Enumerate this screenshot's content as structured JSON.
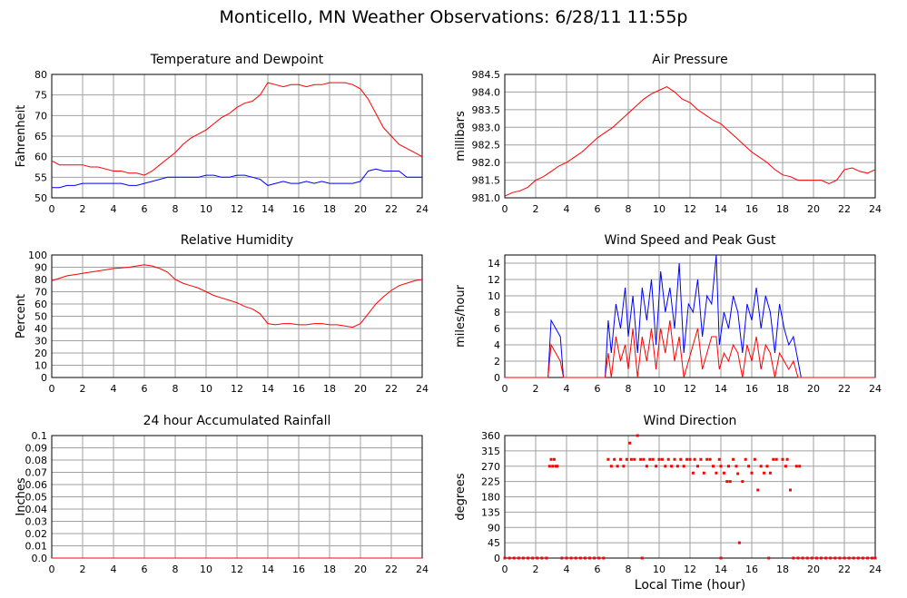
{
  "page_title": "Monticello, MN Weather Observations: 6/28/11 11:55p",
  "colors": {
    "temperature": "#ff0000",
    "dewpoint": "#0000ff",
    "pressure": "#ff0000",
    "humidity": "#ff0000",
    "rainfall": "#ff0000",
    "wind_speed": "#ff0000",
    "peak_gust": "#0000ff",
    "wind_direction": "#ff0000",
    "grid": "#a0a0a0"
  },
  "chart_data": [
    {
      "type": "line",
      "title": "Temperature and Dewpoint",
      "ylabel": "Fahrenheit",
      "xlabel": "",
      "xlim": [
        0,
        24
      ],
      "ylim": [
        50,
        80
      ],
      "xticks": [
        "0",
        "2",
        "4",
        "6",
        "8",
        "10",
        "12",
        "14",
        "16",
        "18",
        "20",
        "22",
        "24"
      ],
      "yticks": [
        "50",
        "55",
        "60",
        "65",
        "70",
        "75",
        "80"
      ],
      "grid": true,
      "series": [
        {
          "color": "#ff0000",
          "x": [
            0,
            0.5,
            1,
            1.5,
            2,
            2.5,
            3,
            3.5,
            4,
            4.5,
            5,
            5.5,
            6,
            6.5,
            7,
            7.5,
            8,
            8.5,
            9,
            9.5,
            10,
            10.5,
            11,
            11.5,
            12,
            12.5,
            13,
            13.5,
            14,
            14.5,
            15,
            15.5,
            16,
            16.5,
            17,
            17.5,
            18,
            18.5,
            19,
            19.5,
            20,
            20.5,
            21,
            21.5,
            22,
            22.5,
            23,
            23.5,
            24
          ],
          "y": [
            59,
            58,
            58,
            58,
            58,
            57.5,
            57.5,
            57,
            56.5,
            56.5,
            56,
            56,
            55.5,
            56.5,
            58,
            59.5,
            61,
            63,
            64.5,
            65.5,
            66.5,
            68,
            69.5,
            70.5,
            72,
            73,
            73.5,
            75,
            78,
            77.5,
            77,
            77.5,
            77.5,
            77,
            77.5,
            77.5,
            78,
            78,
            78,
            77.5,
            76.5,
            74,
            70.5,
            67,
            65,
            63,
            62,
            61,
            60
          ]
        },
        {
          "color": "#0000ff",
          "x": [
            0,
            0.5,
            1,
            1.5,
            2,
            2.5,
            3,
            3.5,
            4,
            4.5,
            5,
            5.5,
            6,
            6.5,
            7,
            7.5,
            8,
            8.5,
            9,
            9.5,
            10,
            10.5,
            11,
            11.5,
            12,
            12.5,
            13,
            13.5,
            14,
            14.5,
            15,
            15.5,
            16,
            16.5,
            17,
            17.5,
            18,
            18.5,
            19,
            19.5,
            20,
            20.5,
            21,
            21.5,
            22,
            22.5,
            23,
            23.5,
            24
          ],
          "y": [
            52.5,
            52.5,
            53,
            53,
            53.5,
            53.5,
            53.5,
            53.5,
            53.5,
            53.5,
            53,
            53,
            53.5,
            54,
            54.5,
            55,
            55,
            55,
            55,
            55,
            55.5,
            55.5,
            55,
            55,
            55.5,
            55.5,
            55,
            54.5,
            53,
            53.5,
            54,
            53.5,
            53.5,
            54,
            53.5,
            54,
            53.5,
            53.5,
            53.5,
            53.5,
            54,
            56.5,
            57,
            56.5,
            56.5,
            56.5,
            55,
            55,
            55
          ]
        }
      ]
    },
    {
      "type": "line",
      "title": "Air Pressure",
      "ylabel": "millibars",
      "xlabel": "",
      "xlim": [
        0,
        24
      ],
      "ylim": [
        981.0,
        984.5
      ],
      "xticks": [
        "0",
        "2",
        "4",
        "6",
        "8",
        "10",
        "12",
        "14",
        "16",
        "18",
        "20",
        "22",
        "24"
      ],
      "yticks": [
        "981.0",
        "981.5",
        "982.0",
        "982.5",
        "983.0",
        "983.5",
        "984.0",
        "984.5"
      ],
      "grid": true,
      "series": [
        {
          "color": "#ff0000",
          "x": [
            0,
            0.5,
            1,
            1.5,
            2,
            2.5,
            3,
            3.5,
            4,
            4.5,
            5,
            5.5,
            6,
            6.5,
            7,
            7.5,
            8,
            8.5,
            9,
            9.5,
            10,
            10.5,
            11,
            11.5,
            12,
            12.5,
            13,
            13.5,
            14,
            14.5,
            15,
            15.5,
            16,
            16.5,
            17,
            17.5,
            18,
            18.5,
            19,
            19.5,
            20,
            20.5,
            21,
            21.5,
            22,
            22.5,
            23,
            23.5,
            24
          ],
          "y": [
            981.05,
            981.15,
            981.2,
            981.3,
            981.5,
            981.6,
            981.75,
            981.9,
            982.0,
            982.15,
            982.3,
            982.5,
            982.7,
            982.85,
            983.0,
            983.2,
            983.4,
            983.6,
            983.8,
            983.95,
            984.05,
            984.15,
            984.0,
            983.8,
            983.7,
            983.5,
            983.35,
            983.2,
            983.1,
            982.9,
            982.7,
            982.5,
            982.3,
            982.15,
            982.0,
            981.8,
            981.65,
            981.6,
            981.5,
            981.5,
            981.5,
            981.5,
            981.4,
            981.5,
            981.8,
            981.85,
            981.75,
            981.7,
            981.8
          ]
        }
      ]
    },
    {
      "type": "line",
      "title": "Relative Humidity",
      "ylabel": "Percent",
      "xlabel": "",
      "xlim": [
        0,
        24
      ],
      "ylim": [
        0,
        100
      ],
      "xticks": [
        "0",
        "2",
        "4",
        "6",
        "8",
        "10",
        "12",
        "14",
        "16",
        "18",
        "20",
        "22",
        "24"
      ],
      "yticks": [
        "0",
        "10",
        "20",
        "30",
        "40",
        "50",
        "60",
        "70",
        "80",
        "90",
        "100"
      ],
      "grid": true,
      "series": [
        {
          "color": "#ff0000",
          "x": [
            0,
            0.5,
            1,
            1.5,
            2,
            2.5,
            3,
            3.5,
            4,
            4.5,
            5,
            5.5,
            6,
            6.5,
            7,
            7.5,
            8,
            8.5,
            9,
            9.5,
            10,
            10.5,
            11,
            11.5,
            12,
            12.5,
            13,
            13.5,
            14,
            14.5,
            15,
            15.5,
            16,
            16.5,
            17,
            17.5,
            18,
            18.5,
            19,
            19.5,
            20,
            20.5,
            21,
            21.5,
            22,
            22.5,
            23,
            23.5,
            24
          ],
          "y": [
            79,
            81,
            83,
            84,
            85,
            86,
            87,
            88,
            89,
            89.5,
            90,
            91,
            92,
            91,
            89,
            86,
            80,
            77,
            75,
            73,
            70,
            67,
            65,
            63,
            61,
            58,
            56,
            52,
            44,
            43,
            44,
            44,
            43,
            43,
            44,
            44,
            43,
            43,
            42,
            41,
            44,
            52,
            60,
            66,
            71,
            75,
            77,
            79,
            80
          ]
        }
      ]
    },
    {
      "type": "line",
      "title": "Wind Speed and Peak Gust",
      "ylabel": "miles/hour",
      "xlabel": "",
      "xlim": [
        0,
        24
      ],
      "ylim": [
        0,
        15
      ],
      "xticks": [
        "0",
        "2",
        "4",
        "6",
        "8",
        "10",
        "12",
        "14",
        "16",
        "18",
        "20",
        "22",
        "24"
      ],
      "yticks": [
        "0",
        "2",
        "4",
        "6",
        "8",
        "10",
        "12",
        "14"
      ],
      "grid": true,
      "series": [
        {
          "color": "#0000ff",
          "x": [
            0,
            2.8,
            3.0,
            3.3,
            3.6,
            3.8,
            6.5,
            6.7,
            6.9,
            7.2,
            7.5,
            7.8,
            8.0,
            8.3,
            8.6,
            8.9,
            9.2,
            9.5,
            9.8,
            10.1,
            10.4,
            10.7,
            11.0,
            11.3,
            11.6,
            11.9,
            12.2,
            12.5,
            12.8,
            13.1,
            13.4,
            13.7,
            13.9,
            14.2,
            14.5,
            14.8,
            15.1,
            15.4,
            15.7,
            16.0,
            16.3,
            16.6,
            16.9,
            17.2,
            17.5,
            17.8,
            18.1,
            18.4,
            18.7,
            19.0,
            19.2,
            24
          ],
          "y": [
            0,
            0,
            7,
            6,
            5,
            0,
            0,
            7,
            3,
            9,
            6,
            11,
            5,
            10,
            3,
            11,
            7,
            12,
            4,
            13,
            8,
            11,
            6,
            14,
            3,
            9,
            8,
            12,
            5,
            10,
            9,
            15,
            4,
            8,
            6,
            10,
            8,
            3,
            9,
            7,
            11,
            6,
            10,
            8,
            3,
            9,
            6,
            4,
            5,
            2,
            0,
            0
          ]
        },
        {
          "color": "#ff0000",
          "x": [
            0,
            2.8,
            3.0,
            3.3,
            3.6,
            3.8,
            6.5,
            6.7,
            6.9,
            7.2,
            7.5,
            7.8,
            8.0,
            8.3,
            8.6,
            8.9,
            9.2,
            9.5,
            9.8,
            10.1,
            10.4,
            10.7,
            11.0,
            11.3,
            11.6,
            11.9,
            12.2,
            12.5,
            12.8,
            13.1,
            13.4,
            13.7,
            13.9,
            14.2,
            14.5,
            14.8,
            15.1,
            15.4,
            15.7,
            16.0,
            16.3,
            16.6,
            16.9,
            17.2,
            17.5,
            17.8,
            18.1,
            18.4,
            18.7,
            19.0,
            19.2,
            24
          ],
          "y": [
            0,
            0,
            4,
            3,
            2,
            0,
            0,
            3,
            0,
            5,
            2,
            4,
            1,
            6,
            0,
            5,
            2,
            6,
            1,
            6,
            3,
            7,
            2,
            5,
            0,
            2,
            4,
            6,
            1,
            3,
            5,
            5,
            1,
            3,
            2,
            4,
            3,
            0,
            4,
            2,
            5,
            1,
            4,
            3,
            0,
            3,
            2,
            1,
            2,
            0,
            0,
            0
          ]
        }
      ]
    },
    {
      "type": "line",
      "title": "24 hour Accumulated Rainfall",
      "ylabel": "Inches",
      "xlabel": "",
      "xlim": [
        0,
        24
      ],
      "ylim": [
        0.0,
        0.1
      ],
      "xticks": [
        "0",
        "2",
        "4",
        "6",
        "8",
        "10",
        "12",
        "14",
        "16",
        "18",
        "20",
        "22",
        "24"
      ],
      "yticks": [
        "0.0",
        "0.01",
        "0.02",
        "0.03",
        "0.04",
        "0.05",
        "0.06",
        "0.07",
        "0.08",
        "0.09",
        "0.1"
      ],
      "grid": true,
      "series": [
        {
          "color": "#ff0000",
          "x": [
            0,
            24
          ],
          "y": [
            0,
            0
          ]
        }
      ]
    },
    {
      "type": "scatter",
      "title": "Wind Direction",
      "ylabel": "degrees",
      "xlabel": "Local Time (hour)",
      "xlim": [
        0,
        24
      ],
      "ylim": [
        0,
        360
      ],
      "xticks": [
        "0",
        "2",
        "4",
        "6",
        "8",
        "10",
        "12",
        "14",
        "16",
        "18",
        "20",
        "22",
        "24"
      ],
      "yticks": [
        "0",
        "45",
        "90",
        "135",
        "180",
        "225",
        "270",
        "315",
        "360"
      ],
      "grid": true,
      "series": [
        {
          "color": "#ff0000",
          "x": [
            2.9,
            3.0,
            3.1,
            3.2,
            3.3,
            3.4,
            6.7,
            6.9,
            7.1,
            7.3,
            7.5,
            7.7,
            7.9,
            8.1,
            8.2,
            8.4,
            8.6,
            8.8,
            9.0,
            9.2,
            9.4,
            9.6,
            9.8,
            10.0,
            10.2,
            10.4,
            10.6,
            10.8,
            11.0,
            11.2,
            11.4,
            11.6,
            11.8,
            12.0,
            12.2,
            12.3,
            12.5,
            12.7,
            12.9,
            13.1,
            13.3,
            13.5,
            13.7,
            13.9,
            14.0,
            14.2,
            14.4,
            14.5,
            14.6,
            14.8,
            15.0,
            15.1,
            15.2,
            15.4,
            15.6,
            15.8,
            16.0,
            16.2,
            16.4,
            16.6,
            16.8,
            17.0,
            17.2,
            17.4,
            17.6,
            18.0,
            18.2,
            18.3,
            18.5,
            18.9,
            19.1
          ],
          "y": [
            270,
            290,
            270,
            290,
            270,
            270,
            290,
            270,
            290,
            270,
            290,
            270,
            290,
            338,
            290,
            290,
            360,
            290,
            290,
            270,
            290,
            290,
            270,
            290,
            290,
            270,
            290,
            270,
            290,
            270,
            290,
            270,
            290,
            290,
            250,
            290,
            270,
            290,
            250,
            290,
            290,
            270,
            250,
            290,
            270,
            250,
            225,
            270,
            225,
            290,
            270,
            248,
            45,
            225,
            290,
            270,
            250,
            290,
            200,
            270,
            250,
            270,
            250,
            290,
            290,
            290,
            270,
            290,
            200,
            270,
            270
          ]
        },
        {
          "color": "#ff0000",
          "x": [
            0,
            0.3,
            0.6,
            0.9,
            1.2,
            1.5,
            1.8,
            2.1,
            2.4,
            2.7,
            3.7,
            4.0,
            4.3,
            4.6,
            4.9,
            5.2,
            5.5,
            5.8,
            6.1,
            6.4,
            8.9,
            14.0,
            17.1,
            18.7,
            19.0,
            19.3,
            19.6,
            19.9,
            20.2,
            20.5,
            20.8,
            21.1,
            21.4,
            21.7,
            22.0,
            22.3,
            22.6,
            22.9,
            23.2,
            23.5,
            23.8,
            24
          ],
          "y": [
            0,
            0,
            0,
            0,
            0,
            0,
            0,
            0,
            0,
            0,
            0,
            0,
            0,
            0,
            0,
            0,
            0,
            0,
            0,
            0,
            0,
            0,
            0,
            0,
            0,
            0,
            0,
            0,
            0,
            0,
            0,
            0,
            0,
            0,
            0,
            0,
            0,
            0,
            0,
            0,
            0,
            0
          ]
        }
      ]
    }
  ]
}
